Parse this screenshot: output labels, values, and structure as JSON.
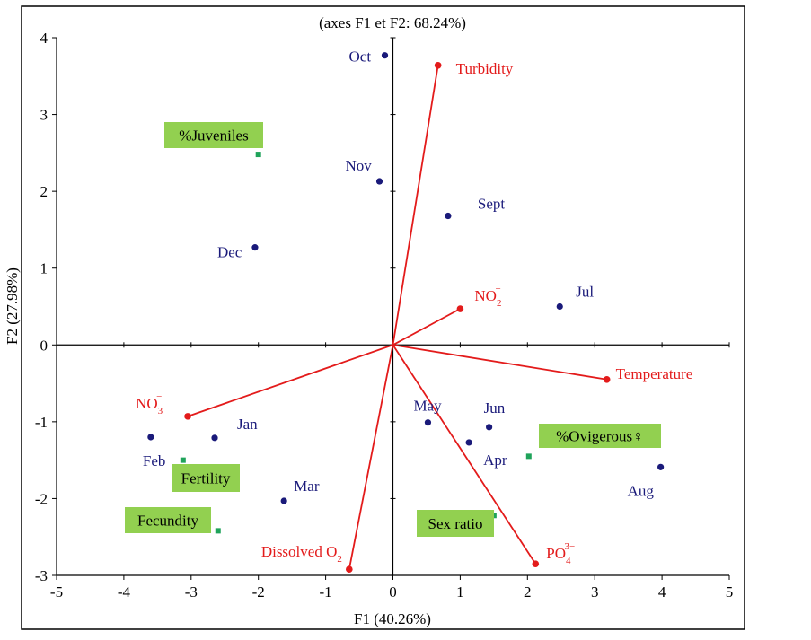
{
  "chart_data": {
    "type": "scatter",
    "title": "(axes F1 et F2: 68.24%)",
    "xlabel": "F1 (40.26%)",
    "ylabel": "F2 (27.98%)",
    "xlim": [
      -5,
      5
    ],
    "ylim": [
      -3,
      4
    ],
    "x_ticks": [
      "-5",
      "-4",
      "-3",
      "-2",
      "-1",
      "0",
      "1",
      "2",
      "3",
      "4",
      "5"
    ],
    "y_ticks": [
      "-3",
      "-2",
      "-1",
      "0",
      "1",
      "2",
      "3",
      "4"
    ],
    "grid": false,
    "colors": {
      "observations": "#1a1a7a",
      "variables": "#e31b1b",
      "supplementary_marker": "#1fa35a",
      "supplementary_box": "#92d050",
      "frame": "#000000"
    },
    "observations": [
      {
        "label": "Oct",
        "x": -0.12,
        "y": 3.77
      },
      {
        "label": "Nov",
        "x": -0.2,
        "y": 2.13
      },
      {
        "label": "Sept",
        "x": 0.82,
        "y": 1.68
      },
      {
        "label": "Dec",
        "x": -2.05,
        "y": 1.27
      },
      {
        "label": "Jul",
        "x": 2.48,
        "y": 0.5
      },
      {
        "label": "May",
        "x": 0.52,
        "y": -1.01
      },
      {
        "label": "Jun",
        "x": 1.43,
        "y": -1.07
      },
      {
        "label": "Apr",
        "x": 1.13,
        "y": -1.27
      },
      {
        "label": "Jan",
        "x": -2.65,
        "y": -1.21
      },
      {
        "label": "Feb",
        "x": -3.6,
        "y": -1.2
      },
      {
        "label": "Mar",
        "x": -1.62,
        "y": -2.03
      },
      {
        "label": "Aug",
        "x": 3.98,
        "y": -1.59
      }
    ],
    "variables": [
      {
        "label": "Turbidity",
        "x": 0.67,
        "y": 3.64
      },
      {
        "label": "NO",
        "sub": "2",
        "sup": "−",
        "x": 1.0,
        "y": 0.47
      },
      {
        "label": "Temperature",
        "x": 3.18,
        "y": -0.45
      },
      {
        "label": "NO",
        "sub": "3",
        "sup": "−",
        "x": -3.05,
        "y": -0.93
      },
      {
        "label": "Dissolved O",
        "sub": "2",
        "sup": "",
        "x": -0.65,
        "y": -2.92
      },
      {
        "label": "PO",
        "sub": "4",
        "sup": "3−",
        "x": 2.12,
        "y": -2.85
      }
    ],
    "supplementary": [
      {
        "label": "%Juveniles",
        "x": -2.0,
        "y": 2.48
      },
      {
        "label": "%Ovigerous♀",
        "x": 2.02,
        "y": -1.45
      },
      {
        "label": "Fertility",
        "x": -3.12,
        "y": -1.5
      },
      {
        "label": "Fecundity",
        "x": -2.6,
        "y": -2.42
      },
      {
        "label": "Sex ratio",
        "x": 1.5,
        "y": -2.22
      }
    ]
  }
}
